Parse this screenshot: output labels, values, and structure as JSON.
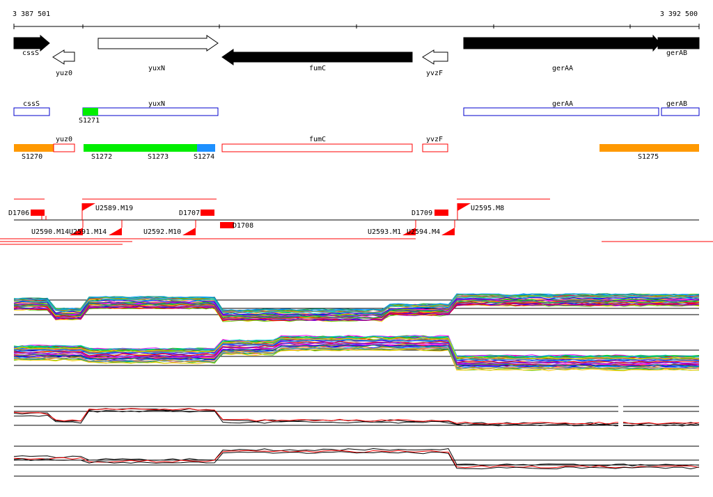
{
  "coordinates": {
    "start": "3 387 501",
    "end": "3 392 500"
  },
  "gene_track": [
    {
      "label": "cssS",
      "fill": "#000000",
      "dir": "right"
    },
    {
      "label": "yuz0",
      "fill": "#ffffff",
      "dir": "left"
    },
    {
      "label": "yuxN",
      "fill": "#ffffff",
      "dir": "right"
    },
    {
      "label": "fumC",
      "fill": "#000000",
      "dir": "left"
    },
    {
      "label": "yvzF",
      "fill": "#ffffff",
      "dir": "left"
    },
    {
      "label": "gerAA",
      "fill": "#000000",
      "dir": "right"
    },
    {
      "label": "gerAB",
      "fill": "#000000",
      "dir": "right"
    }
  ],
  "blue_boxes": [
    "cssS",
    "yuxN",
    "gerAA",
    "gerAB"
  ],
  "segments": [
    {
      "label": "S1270",
      "color": "#ff9900"
    },
    {
      "label": "S1271",
      "color": "#00ee00"
    },
    {
      "label": "S1272",
      "color": "#00ee00"
    },
    {
      "label": "S1273",
      "color": "#00ee00"
    },
    {
      "label": "S1274",
      "color": "#1e90ff"
    },
    {
      "label": "S1275",
      "color": "#ff9900"
    }
  ],
  "red_boxes": [
    "yuz0",
    "fumC",
    "yvzF"
  ],
  "features": {
    "d_labels": [
      "D1706",
      "D1707",
      "D1708",
      "D1709"
    ],
    "u_labels": [
      "U2589.M19",
      "U2595.M8",
      "U2590.M14",
      "U2591.M14",
      "U2592.M10",
      "U2593.M1",
      "U2594.M4"
    ]
  },
  "colors": {
    "blue_outline": "#0000cc",
    "red": "#ff0000",
    "axis": "#000000"
  }
}
